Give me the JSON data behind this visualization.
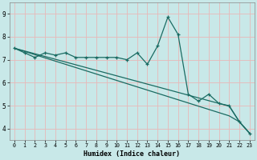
{
  "x": [
    0,
    1,
    2,
    3,
    4,
    5,
    6,
    7,
    8,
    9,
    10,
    11,
    12,
    13,
    14,
    15,
    16,
    17,
    18,
    19,
    20,
    21,
    22,
    23
  ],
  "line1": [
    7.5,
    7.3,
    7.1,
    7.3,
    7.2,
    7.3,
    7.1,
    7.1,
    7.1,
    7.1,
    7.1,
    7.0,
    7.3,
    6.8,
    7.6,
    8.85,
    8.1,
    5.5,
    5.2,
    5.5,
    5.1,
    5.0,
    4.3,
    3.8
  ],
  "trend1": [
    7.5,
    7.38,
    7.26,
    7.14,
    7.02,
    6.9,
    6.78,
    6.66,
    6.54,
    6.42,
    6.3,
    6.18,
    6.06,
    5.94,
    5.82,
    5.7,
    5.58,
    5.46,
    5.34,
    5.22,
    5.1,
    4.98,
    4.3,
    3.8
  ],
  "trend2": [
    7.5,
    7.36,
    7.22,
    7.08,
    6.94,
    6.8,
    6.66,
    6.52,
    6.38,
    6.24,
    6.1,
    5.96,
    5.82,
    5.68,
    5.54,
    5.4,
    5.26,
    5.12,
    4.98,
    4.84,
    4.7,
    4.56,
    4.3,
    3.8
  ],
  "background_color": "#c8e8e8",
  "line_color": "#1a6b62",
  "grid_color": "#e8b8b8",
  "xlabel": "Humidex (Indice chaleur)",
  "ylim": [
    3.5,
    9.5
  ],
  "xlim": [
    -0.5,
    23.5
  ],
  "yticks": [
    4,
    5,
    6,
    7,
    8,
    9
  ],
  "xticks": [
    0,
    1,
    2,
    3,
    4,
    5,
    6,
    7,
    8,
    9,
    10,
    11,
    12,
    13,
    14,
    15,
    16,
    17,
    18,
    19,
    20,
    21,
    22,
    23
  ],
  "tick_fontsize": 5,
  "xlabel_fontsize": 6
}
